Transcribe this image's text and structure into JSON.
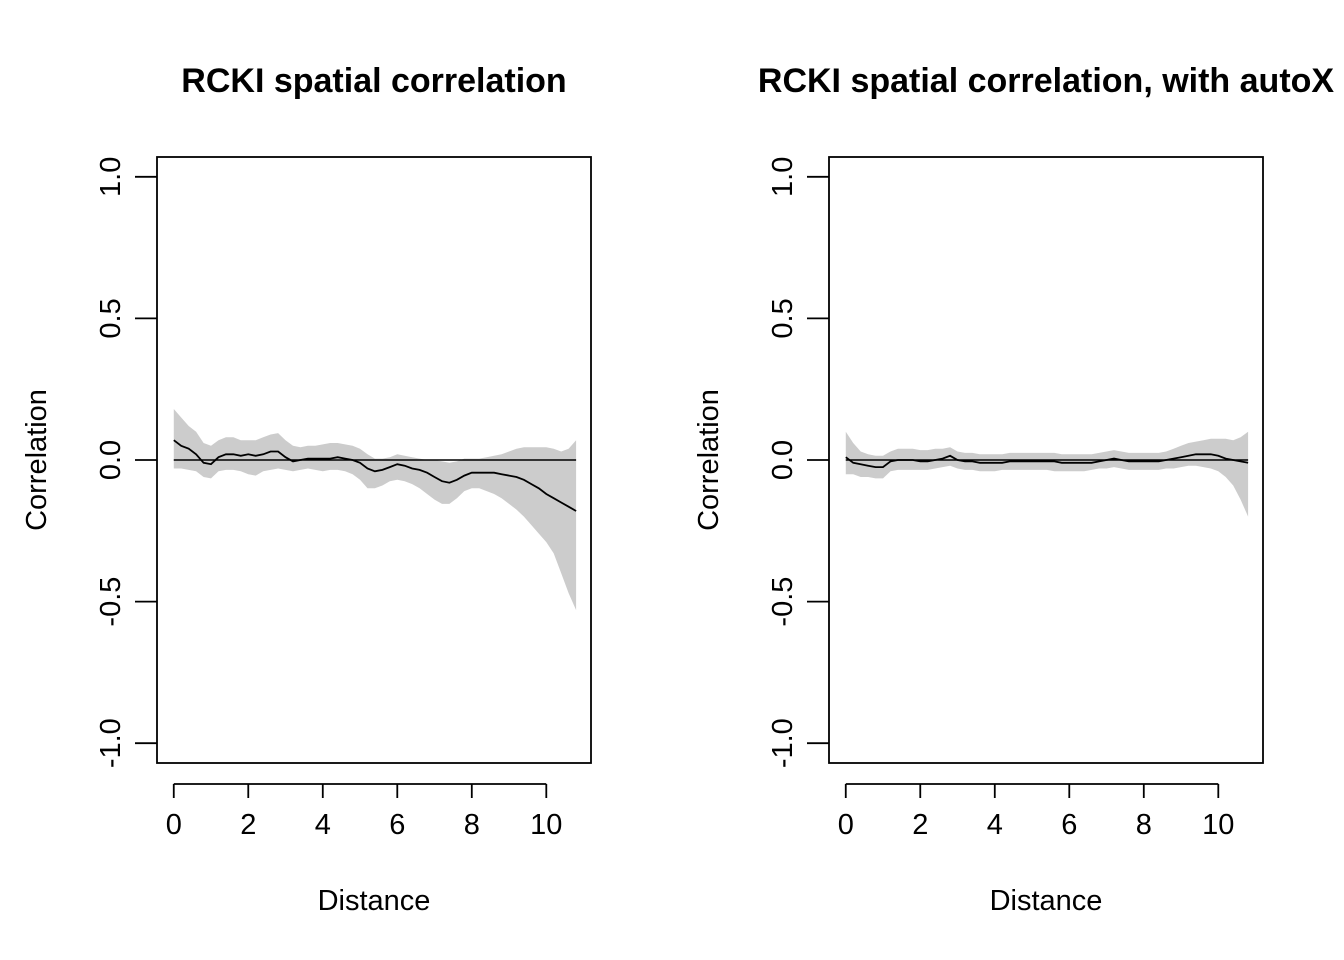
{
  "chart_data": [
    {
      "type": "area",
      "title": "RCKI spatial correlation",
      "xlabel": "Distance",
      "ylabel": "Correlation",
      "xlim": [
        -0.45,
        11.2
      ],
      "ylim": [
        -1.07,
        1.07
      ],
      "xticks": [
        "0",
        "2",
        "4",
        "6",
        "8",
        "10"
      ],
      "yticks": [
        "-1.0",
        "-0.5",
        "0.0",
        "0.5",
        "1.0"
      ],
      "grid": false,
      "reference_line": 0,
      "band_color": "#cccccc",
      "line_color": "#000000",
      "series": [
        {
          "x": [
            0,
            0.2,
            0.4,
            0.6,
            0.8,
            1.0,
            1.2,
            1.4,
            1.6,
            1.8,
            2.0,
            2.2,
            2.4,
            2.6,
            2.8,
            3.0,
            3.2,
            3.4,
            3.6,
            3.8,
            4.0,
            4.2,
            4.4,
            4.6,
            4.8,
            5.0,
            5.2,
            5.4,
            5.6,
            5.8,
            6.0,
            6.2,
            6.4,
            6.6,
            6.8,
            7.0,
            7.2,
            7.4,
            7.6,
            7.8,
            8.0,
            8.2,
            8.4,
            8.6,
            8.8,
            9.0,
            9.2,
            9.4,
            9.6,
            9.8,
            10.0,
            10.2,
            10.4,
            10.6,
            10.8
          ],
          "y": [
            0.07,
            0.05,
            0.04,
            0.02,
            -0.01,
            -0.015,
            0.01,
            0.02,
            0.02,
            0.015,
            0.02,
            0.015,
            0.02,
            0.03,
            0.03,
            0.01,
            -0.005,
            0.0,
            0.005,
            0.005,
            0.005,
            0.005,
            0.01,
            0.005,
            0.0,
            -0.01,
            -0.03,
            -0.04,
            -0.035,
            -0.025,
            -0.015,
            -0.02,
            -0.03,
            -0.035,
            -0.045,
            -0.06,
            -0.075,
            -0.08,
            -0.07,
            -0.055,
            -0.045,
            -0.045,
            -0.045,
            -0.045,
            -0.05,
            -0.055,
            -0.06,
            -0.07,
            -0.085,
            -0.1,
            -0.12,
            -0.135,
            -0.15,
            -0.165,
            -0.18
          ],
          "lower": [
            -0.03,
            -0.03,
            -0.035,
            -0.04,
            -0.06,
            -0.065,
            -0.04,
            -0.035,
            -0.035,
            -0.04,
            -0.05,
            -0.055,
            -0.04,
            -0.035,
            -0.03,
            -0.035,
            -0.04,
            -0.035,
            -0.03,
            -0.035,
            -0.04,
            -0.035,
            -0.035,
            -0.04,
            -0.05,
            -0.07,
            -0.1,
            -0.1,
            -0.09,
            -0.075,
            -0.07,
            -0.075,
            -0.085,
            -0.1,
            -0.12,
            -0.14,
            -0.155,
            -0.155,
            -0.135,
            -0.11,
            -0.1,
            -0.1,
            -0.11,
            -0.12,
            -0.135,
            -0.155,
            -0.175,
            -0.2,
            -0.23,
            -0.26,
            -0.29,
            -0.33,
            -0.4,
            -0.47,
            -0.53
          ],
          "upper": [
            0.18,
            0.15,
            0.12,
            0.1,
            0.06,
            0.05,
            0.07,
            0.08,
            0.08,
            0.07,
            0.07,
            0.07,
            0.08,
            0.09,
            0.095,
            0.07,
            0.05,
            0.045,
            0.05,
            0.05,
            0.055,
            0.06,
            0.06,
            0.055,
            0.05,
            0.04,
            0.02,
            0.005,
            0.005,
            0.01,
            0.02,
            0.015,
            0.01,
            0.005,
            0.0,
            0.0,
            -0.005,
            -0.01,
            -0.005,
            0.005,
            0.005,
            0.005,
            0.01,
            0.015,
            0.02,
            0.03,
            0.04,
            0.045,
            0.045,
            0.045,
            0.045,
            0.04,
            0.03,
            0.04,
            0.07
          ]
        }
      ]
    },
    {
      "type": "area",
      "title": "RCKI spatial correlation, with autoX",
      "xlabel": "Distance",
      "ylabel": "Correlation",
      "xlim": [
        -0.45,
        11.2
      ],
      "ylim": [
        -1.07,
        1.07
      ],
      "xticks": [
        "0",
        "2",
        "4",
        "6",
        "8",
        "10"
      ],
      "yticks": [
        "-1.0",
        "-0.5",
        "0.0",
        "0.5",
        "1.0"
      ],
      "grid": false,
      "reference_line": 0,
      "band_color": "#cccccc",
      "line_color": "#000000",
      "series": [
        {
          "x": [
            0,
            0.2,
            0.4,
            0.6,
            0.8,
            1.0,
            1.2,
            1.4,
            1.6,
            1.8,
            2.0,
            2.2,
            2.4,
            2.6,
            2.8,
            3.0,
            3.2,
            3.4,
            3.6,
            3.8,
            4.0,
            4.2,
            4.4,
            4.6,
            4.8,
            5.0,
            5.2,
            5.4,
            5.6,
            5.8,
            6.0,
            6.2,
            6.4,
            6.6,
            6.8,
            7.0,
            7.2,
            7.4,
            7.6,
            7.8,
            8.0,
            8.2,
            8.4,
            8.6,
            8.8,
            9.0,
            9.2,
            9.4,
            9.6,
            9.8,
            10.0,
            10.2,
            10.4,
            10.6,
            10.8
          ],
          "y": [
            0.01,
            -0.01,
            -0.015,
            -0.02,
            -0.025,
            -0.025,
            -0.005,
            0.0,
            0.0,
            0.0,
            -0.005,
            -0.005,
            0.0,
            0.005,
            0.015,
            0.0,
            -0.005,
            -0.005,
            -0.01,
            -0.01,
            -0.01,
            -0.01,
            -0.005,
            -0.005,
            -0.005,
            -0.005,
            -0.005,
            -0.005,
            -0.005,
            -0.01,
            -0.01,
            -0.01,
            -0.01,
            -0.01,
            -0.005,
            0.0,
            0.005,
            0.0,
            -0.005,
            -0.005,
            -0.005,
            -0.005,
            -0.005,
            0.0,
            0.005,
            0.01,
            0.015,
            0.02,
            0.02,
            0.02,
            0.015,
            0.005,
            0.0,
            -0.005,
            -0.01
          ],
          "lower": [
            -0.05,
            -0.05,
            -0.06,
            -0.06,
            -0.065,
            -0.065,
            -0.04,
            -0.035,
            -0.035,
            -0.035,
            -0.035,
            -0.035,
            -0.03,
            -0.025,
            -0.02,
            -0.03,
            -0.035,
            -0.035,
            -0.04,
            -0.04,
            -0.04,
            -0.035,
            -0.035,
            -0.035,
            -0.035,
            -0.035,
            -0.035,
            -0.035,
            -0.04,
            -0.04,
            -0.04,
            -0.04,
            -0.04,
            -0.035,
            -0.03,
            -0.03,
            -0.025,
            -0.03,
            -0.035,
            -0.035,
            -0.035,
            -0.035,
            -0.035,
            -0.03,
            -0.03,
            -0.025,
            -0.02,
            -0.02,
            -0.025,
            -0.03,
            -0.04,
            -0.06,
            -0.09,
            -0.14,
            -0.2
          ],
          "upper": [
            0.1,
            0.06,
            0.03,
            0.02,
            0.015,
            0.015,
            0.03,
            0.04,
            0.04,
            0.04,
            0.035,
            0.035,
            0.04,
            0.04,
            0.045,
            0.03,
            0.025,
            0.025,
            0.02,
            0.02,
            0.02,
            0.02,
            0.025,
            0.025,
            0.025,
            0.025,
            0.025,
            0.025,
            0.025,
            0.02,
            0.02,
            0.02,
            0.02,
            0.02,
            0.025,
            0.03,
            0.035,
            0.03,
            0.025,
            0.025,
            0.025,
            0.025,
            0.025,
            0.03,
            0.04,
            0.05,
            0.06,
            0.065,
            0.07,
            0.075,
            0.075,
            0.075,
            0.07,
            0.08,
            0.1
          ]
        }
      ]
    }
  ]
}
